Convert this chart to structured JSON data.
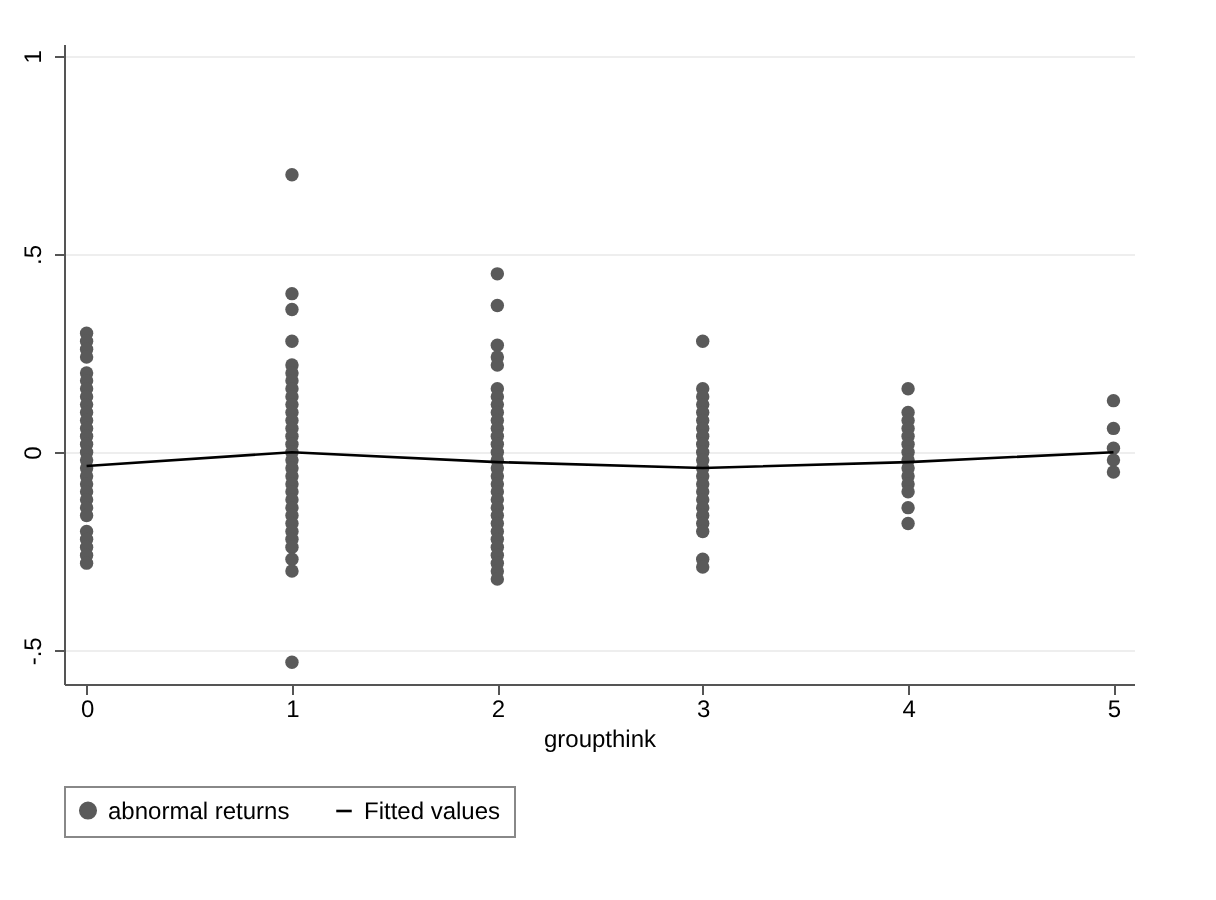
{
  "chart_data": {
    "type": "scatter",
    "xlabel": "groupthink",
    "xlim": [
      -0.11,
      5.1
    ],
    "xticks": [
      0,
      1,
      2,
      3,
      4,
      5
    ],
    "ylim": [
      -0.585,
      1.03
    ],
    "yticks": [
      {
        "value": -0.5,
        "label": "-.5"
      },
      0,
      {
        "value": 0.5,
        "label": ".5"
      },
      1
    ],
    "grid": "y",
    "legend": "bottom",
    "series": [
      {
        "name": "abnormal returns",
        "color": "#5a5a5a",
        "marker": "circle",
        "x": [
          0,
          0,
          0,
          0,
          0,
          0,
          0,
          0,
          0,
          0,
          0,
          0,
          0,
          0,
          0,
          0,
          0,
          0,
          0,
          0,
          0,
          0,
          0,
          0,
          0,
          0,
          0,
          0,
          1,
          1,
          1,
          1,
          1,
          1,
          1,
          1,
          1,
          1,
          1,
          1,
          1,
          1,
          1,
          1,
          1,
          1,
          1,
          1,
          1,
          1,
          1,
          1,
          1,
          1,
          1,
          1,
          1,
          1,
          1,
          2,
          2,
          2,
          2,
          2,
          2,
          2,
          2,
          2,
          2,
          2,
          2,
          2,
          2,
          2,
          2,
          2,
          2,
          2,
          2,
          2,
          2,
          2,
          2,
          2,
          2,
          2,
          2,
          2,
          2,
          3,
          3,
          3,
          3,
          3,
          3,
          3,
          3,
          3,
          3,
          3,
          3,
          3,
          3,
          3,
          3,
          3,
          3,
          3,
          3,
          3,
          3,
          4,
          4,
          4,
          4,
          4,
          4,
          4,
          4,
          4,
          4,
          4,
          4,
          4,
          4,
          5,
          5,
          5,
          5,
          5
        ],
        "values": [
          0.3,
          0.28,
          0.26,
          0.24,
          0.2,
          0.18,
          0.16,
          0.14,
          0.12,
          0.1,
          0.08,
          0.06,
          0.04,
          0.02,
          0,
          -0.02,
          -0.04,
          -0.06,
          -0.08,
          -0.1,
          -0.12,
          -0.14,
          -0.16,
          -0.2,
          -0.22,
          -0.24,
          -0.26,
          -0.28,
          0.7,
          0.4,
          0.36,
          0.28,
          0.22,
          0.2,
          0.18,
          0.16,
          0.14,
          0.12,
          0.1,
          0.08,
          0.06,
          0.04,
          0.02,
          0,
          -0.02,
          -0.04,
          -0.06,
          -0.08,
          -0.1,
          -0.12,
          -0.14,
          -0.16,
          -0.18,
          -0.2,
          -0.22,
          -0.24,
          -0.27,
          -0.3,
          -0.53,
          0.45,
          0.37,
          0.27,
          0.24,
          0.22,
          0.16,
          0.14,
          0.12,
          0.1,
          0.08,
          0.06,
          0.04,
          0.02,
          0,
          -0.02,
          -0.04,
          -0.06,
          -0.08,
          -0.1,
          -0.12,
          -0.14,
          -0.16,
          -0.18,
          -0.2,
          -0.22,
          -0.24,
          -0.26,
          -0.28,
          -0.3,
          -0.32,
          0.28,
          0.16,
          0.14,
          0.12,
          0.1,
          0.08,
          0.06,
          0.04,
          0.02,
          0,
          -0.02,
          -0.04,
          -0.06,
          -0.08,
          -0.1,
          -0.12,
          -0.14,
          -0.16,
          -0.18,
          -0.2,
          -0.27,
          -0.29,
          0.16,
          0.1,
          0.08,
          0.06,
          0.04,
          0.02,
          0,
          -0.02,
          -0.04,
          -0.06,
          -0.08,
          -0.1,
          -0.14,
          -0.18,
          0.13,
          0.06,
          0.01,
          -0.02,
          -0.05
        ]
      },
      {
        "name": "Fitted values",
        "type": "line",
        "color": "#000000",
        "marker": "none",
        "x": [
          0,
          1,
          2,
          3,
          4,
          5
        ],
        "values": [
          -0.035,
          0.0,
          -0.025,
          -0.04,
          -0.025,
          0.0
        ]
      }
    ]
  }
}
